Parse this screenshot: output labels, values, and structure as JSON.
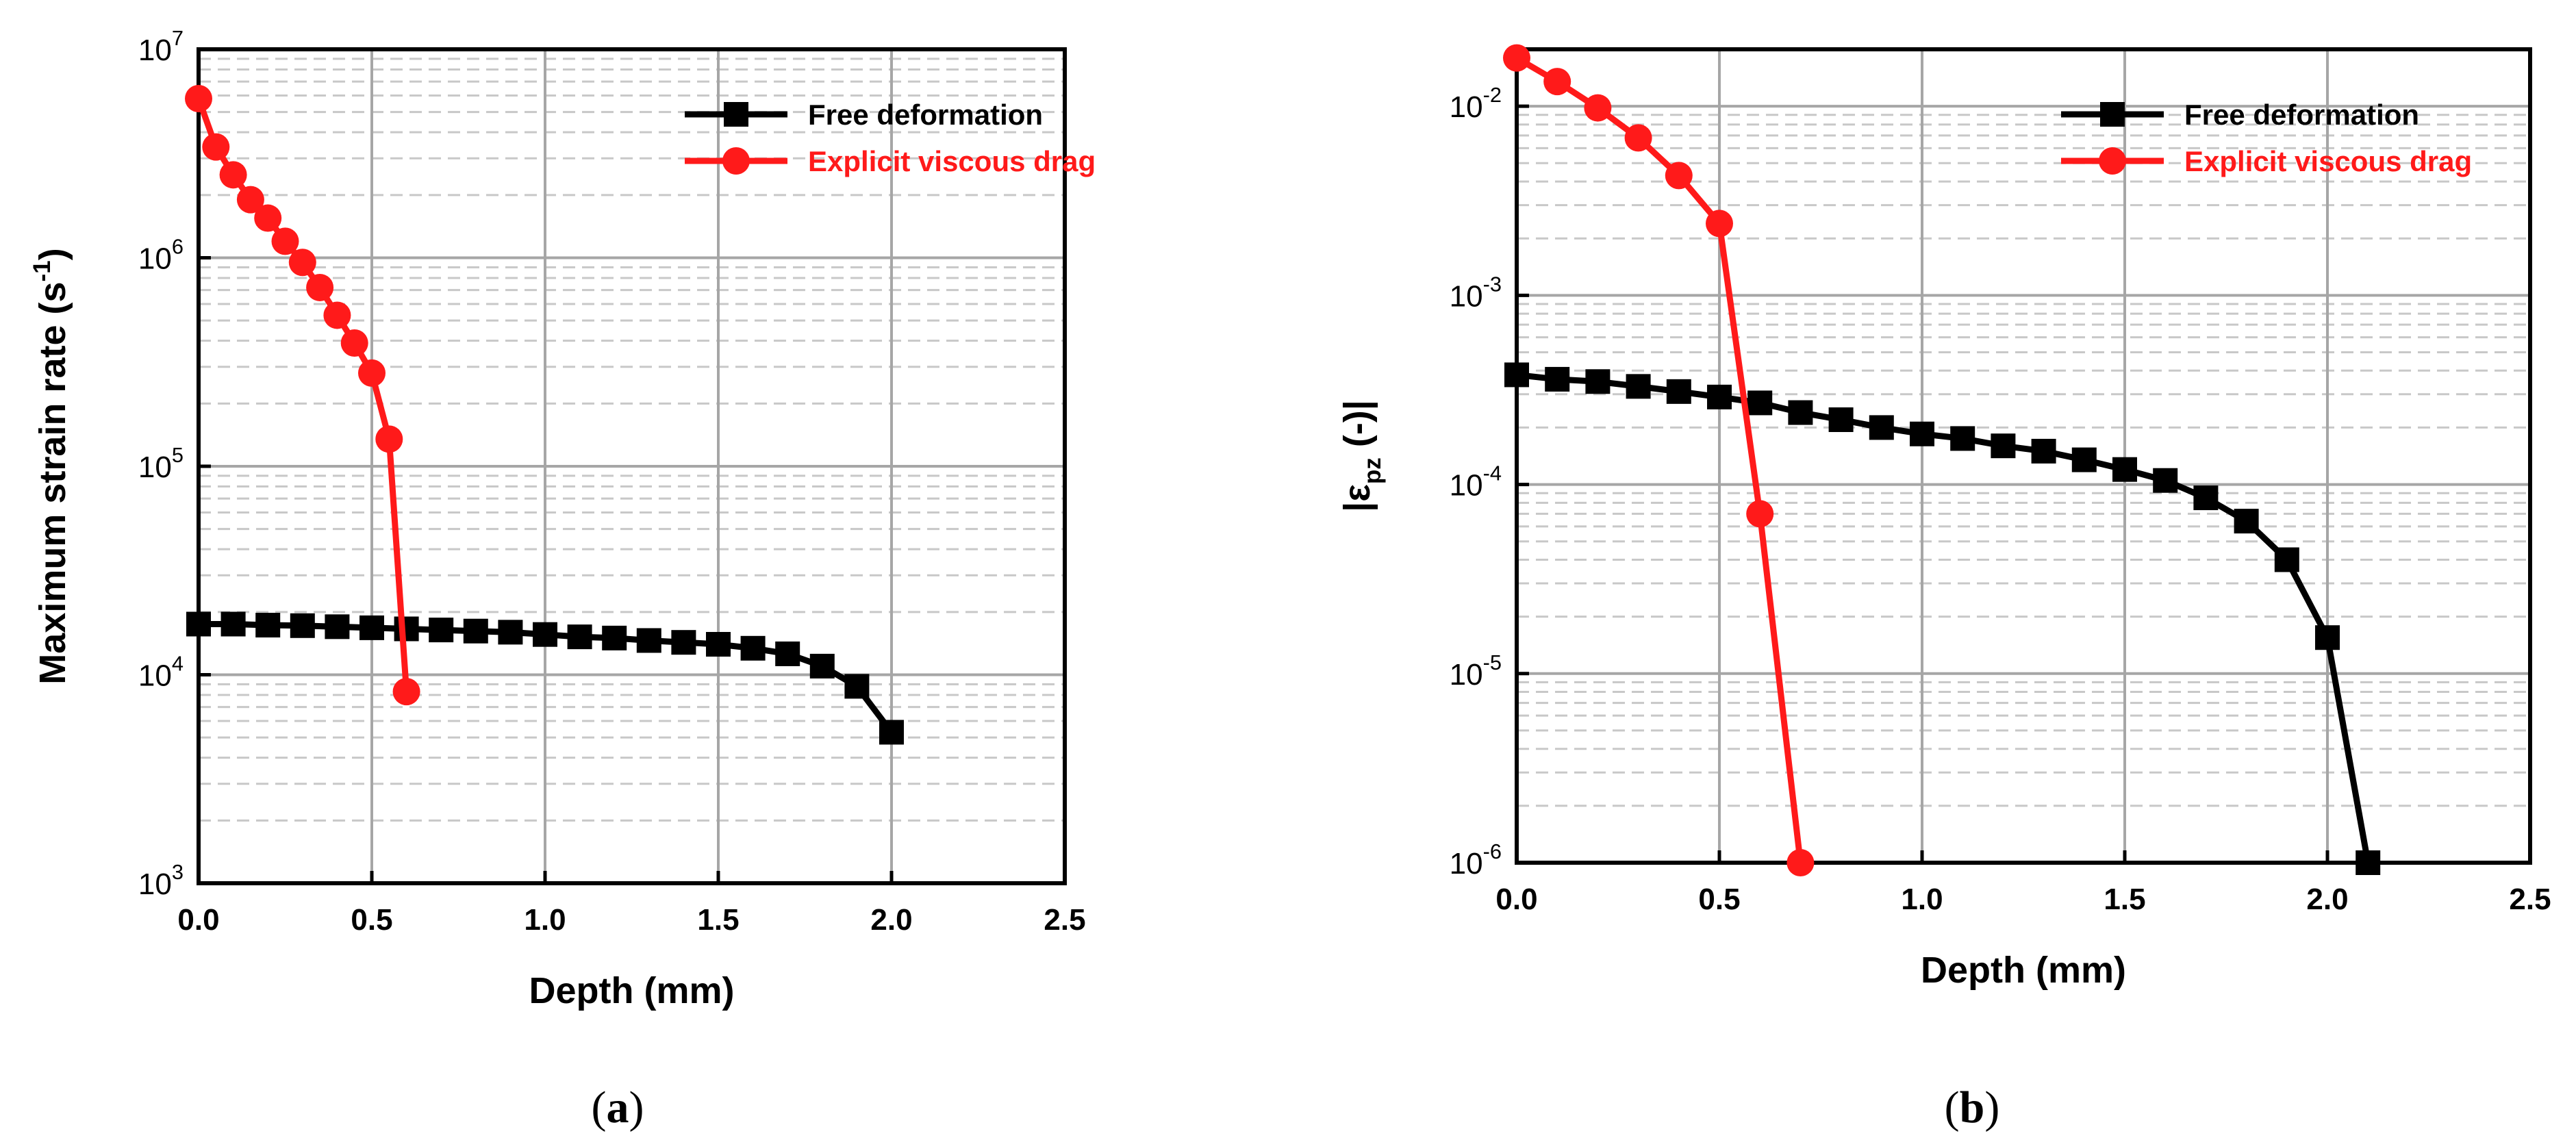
{
  "colors": {
    "free": "#000000",
    "viscous": "#ff1a1a",
    "grid": "#a6a6a6",
    "minor_grid": "#c8c8c8",
    "axis": "#000000"
  },
  "panels": [
    {
      "open": "(",
      "letter": "a",
      "close": ")"
    },
    {
      "open": "(",
      "letter": "b",
      "close": ")"
    }
  ],
  "chart_data": [
    {
      "type": "line",
      "yscale": "log",
      "xlabel": "Depth (mm)",
      "ylabel": {
        "main": "Maximum strain rate (s",
        "sup": "-1",
        "end": ")"
      },
      "xlim": [
        0,
        2.5
      ],
      "ylim": [
        1000,
        10000000
      ],
      "xticks": [
        "0.0",
        "0.5",
        "1.0",
        "1.5",
        "2.0",
        "2.5"
      ],
      "yticks": [
        {
          "base": "10",
          "exp": "3"
        },
        {
          "base": "10",
          "exp": "4"
        },
        {
          "base": "10",
          "exp": "5"
        },
        {
          "base": "10",
          "exp": "6"
        },
        {
          "base": "10",
          "exp": "7"
        }
      ],
      "legend": {
        "position": "top-right"
      },
      "series": [
        {
          "name": "Free deformation",
          "marker": "square",
          "color": "#000000",
          "x": [
            0,
            0.1,
            0.2,
            0.3,
            0.4,
            0.5,
            0.6,
            0.7,
            0.8,
            0.9,
            1.0,
            1.1,
            1.2,
            1.3,
            1.4,
            1.5,
            1.6,
            1.7,
            1.8,
            1.9,
            2.0
          ],
          "y": [
            17500,
            17500,
            17300,
            17200,
            17000,
            16800,
            16600,
            16400,
            16200,
            16000,
            15600,
            15200,
            15000,
            14600,
            14300,
            14000,
            13400,
            12600,
            11000,
            8800,
            5300
          ]
        },
        {
          "name": "Explicit viscous drag",
          "marker": "circle",
          "color": "#ff1a1a",
          "x": [
            0,
            0.05,
            0.1,
            0.15,
            0.2,
            0.25,
            0.3,
            0.35,
            0.4,
            0.45,
            0.5,
            0.55,
            0.6
          ],
          "y": [
            5800000,
            3400000,
            2500000,
            1900000,
            1550000,
            1200000,
            950000,
            720000,
            530000,
            390000,
            280000,
            135000,
            8300
          ]
        }
      ]
    },
    {
      "type": "line",
      "yscale": "log",
      "xlabel": "Depth (mm)",
      "ylabel": {
        "pre": "|ε",
        "sub": "pz",
        "post": "  (-)|"
      },
      "xlim": [
        0,
        2.5
      ],
      "ylim": [
        1e-06,
        0.02
      ],
      "xticks": [
        "0.0",
        "0.5",
        "1.0",
        "1.5",
        "2.0",
        "2.5"
      ],
      "yticks": [
        {
          "base": "10",
          "exp": "-6"
        },
        {
          "base": "10",
          "exp": "-5"
        },
        {
          "base": "10",
          "exp": "-4"
        },
        {
          "base": "10",
          "exp": "-3"
        },
        {
          "base": "10",
          "exp": "-2"
        }
      ],
      "legend": {
        "position": "top-right"
      },
      "series": [
        {
          "name": "Free deformation",
          "marker": "square",
          "color": "#000000",
          "x": [
            0,
            0.1,
            0.2,
            0.3,
            0.4,
            0.5,
            0.6,
            0.7,
            0.8,
            0.9,
            1.0,
            1.1,
            1.2,
            1.3,
            1.4,
            1.5,
            1.6,
            1.7,
            1.8,
            1.9,
            2.0,
            2.1
          ],
          "y": [
            0.00038,
            0.00036,
            0.00035,
            0.00033,
            0.00031,
            0.00029,
            0.00027,
            0.00024,
            0.00022,
            0.0002,
            0.000185,
            0.000175,
            0.00016,
            0.00015,
            0.000135,
            0.00012,
            0.000105,
            8.5e-05,
            6.4e-05,
            4e-05,
            1.55e-05,
            1e-06
          ]
        },
        {
          "name": "Explicit viscous drag",
          "marker": "circle",
          "color": "#ff1a1a",
          "x": [
            0,
            0.1,
            0.2,
            0.3,
            0.4,
            0.5,
            0.6,
            0.7
          ],
          "y": [
            0.018,
            0.0135,
            0.0098,
            0.0068,
            0.0043,
            0.0024,
            7e-05,
            1e-06
          ]
        }
      ]
    }
  ]
}
